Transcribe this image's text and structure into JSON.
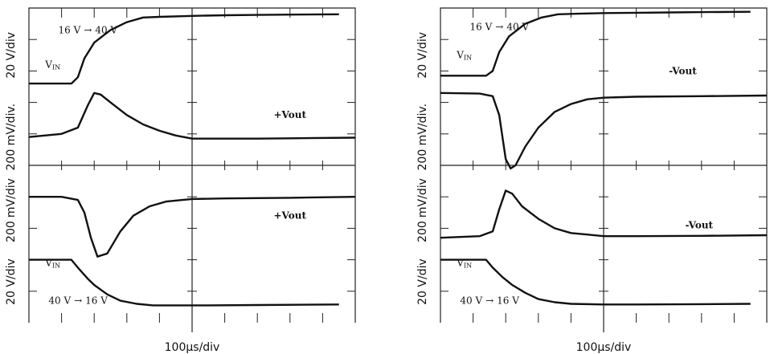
{
  "chart_data": [
    {
      "type": "line",
      "name_hint": "left-oscilloscope",
      "xlabel": "100µs/div",
      "xlim_div": [
        0,
        10
      ],
      "ylim_div": [
        0,
        10
      ],
      "grid": "major-lines-center-and-edges-with-ticks",
      "axis_labels_left": [
        {
          "text": "20 V/div",
          "div_center": 8.5
        },
        {
          "text": "200 mV/div.",
          "div_center": 5.9
        },
        {
          "text": "200",
          "div_center": 3.3
        },
        {
          "text": "mV/div",
          "div_center": 3.3
        },
        {
          "text": "20 V/div",
          "div_center": 1.3
        }
      ],
      "divider_div": 5,
      "series": [
        {
          "id": "vin_rise",
          "x": [
            0,
            1.3,
            1.5,
            1.7,
            2.0,
            2.5,
            3.0,
            3.5,
            4.0,
            5.0,
            6.0,
            7.0,
            8.0,
            9.5
          ],
          "y": [
            7.6,
            7.6,
            7.8,
            8.4,
            8.9,
            9.3,
            9.55,
            9.7,
            9.72,
            9.75,
            9.77,
            9.78,
            9.79,
            9.8
          ]
        },
        {
          "id": "vout_pos_top",
          "x": [
            0,
            1.0,
            1.5,
            1.8,
            2.0,
            2.2,
            2.5,
            3.0,
            3.5,
            4.0,
            4.5,
            5.0,
            6.0,
            7.0,
            8.0,
            10
          ],
          "y": [
            5.9,
            6.0,
            6.2,
            6.9,
            7.3,
            7.25,
            7.0,
            6.6,
            6.3,
            6.1,
            5.95,
            5.85,
            5.85,
            5.85,
            5.86,
            5.88
          ]
        },
        {
          "id": "vout_pos_bottom",
          "x": [
            0,
            1.0,
            1.5,
            1.7,
            1.9,
            2.1,
            2.4,
            2.8,
            3.2,
            3.7,
            4.2,
            5.0,
            6.0,
            8.0,
            10
          ],
          "y": [
            4.0,
            4.0,
            3.9,
            3.5,
            2.7,
            2.1,
            2.2,
            2.9,
            3.4,
            3.7,
            3.85,
            3.93,
            3.95,
            3.97,
            4.0
          ]
        },
        {
          "id": "vin_fall",
          "x": [
            0,
            1.3,
            1.5,
            1.8,
            2.0,
            2.4,
            2.8,
            3.3,
            3.8,
            4.5,
            5.5,
            7.0,
            9.5
          ],
          "y": [
            2.0,
            2.0,
            1.75,
            1.4,
            1.2,
            0.9,
            0.7,
            0.6,
            0.55,
            0.55,
            0.55,
            0.56,
            0.58
          ]
        }
      ],
      "annotations": [
        {
          "text": "16 V",
          "arrow": "→",
          "text2": "40 V",
          "div": [
            0.9,
            9.2
          ]
        },
        {
          "text": "V",
          "sub": "IN",
          "div": [
            0.5,
            8.1
          ]
        },
        {
          "text": "+Vout",
          "div": [
            7.5,
            6.5
          ]
        },
        {
          "text": "+Vout",
          "div": [
            7.5,
            3.3
          ]
        },
        {
          "text": "V",
          "sub": "IN",
          "div": [
            0.5,
            1.8
          ]
        },
        {
          "text": "40 V",
          "arrow": "→",
          "text2": "16 V",
          "div": [
            0.6,
            0.6
          ]
        }
      ]
    },
    {
      "type": "line",
      "name_hint": "right-oscilloscope",
      "xlabel": "100µs/div",
      "xlim_div": [
        0,
        10
      ],
      "ylim_div": [
        0,
        10
      ],
      "grid": "major-lines-center-and-edges-with-ticks",
      "axis_labels_left": [
        {
          "text": "20 V/div",
          "div_center": 8.5
        },
        {
          "text": "200 mV/div.",
          "div_center": 5.9
        },
        {
          "text": "200",
          "div_center": 3.3
        },
        {
          "text": "mV/div",
          "div_center": 3.3
        },
        {
          "text": "20 V/div",
          "div_center": 1.3
        }
      ],
      "divider_div": 5,
      "series": [
        {
          "id": "vin_rise",
          "x": [
            0,
            1.4,
            1.6,
            1.8,
            2.1,
            2.6,
            3.1,
            3.6,
            4.2,
            5.0,
            6.0,
            7.0,
            8.0,
            9.5
          ],
          "y": [
            7.85,
            7.85,
            8.0,
            8.6,
            9.1,
            9.5,
            9.7,
            9.8,
            9.82,
            9.84,
            9.85,
            9.86,
            9.87,
            9.88
          ]
        },
        {
          "id": "vout_neg_top",
          "x": [
            0,
            1.2,
            1.6,
            1.8,
            2.0,
            2.15,
            2.3,
            2.6,
            3.0,
            3.5,
            4.0,
            4.5,
            5.0,
            6.0,
            8.0,
            10
          ],
          "y": [
            7.3,
            7.28,
            7.2,
            6.6,
            5.2,
            4.9,
            5.0,
            5.6,
            6.2,
            6.7,
            6.95,
            7.1,
            7.15,
            7.18,
            7.2,
            7.22
          ]
        },
        {
          "id": "vout_neg_bottom",
          "x": [
            0,
            1.2,
            1.6,
            1.8,
            2.0,
            2.2,
            2.5,
            3.0,
            3.5,
            4.0,
            4.5,
            5.0,
            6.0,
            8.0,
            10
          ],
          "y": [
            2.7,
            2.75,
            2.9,
            3.6,
            4.2,
            4.1,
            3.7,
            3.3,
            3.0,
            2.85,
            2.8,
            2.75,
            2.75,
            2.76,
            2.78
          ]
        },
        {
          "id": "vin_fall",
          "x": [
            0,
            1.4,
            1.6,
            1.9,
            2.2,
            2.6,
            3.0,
            3.5,
            4.0,
            5.0,
            6.0,
            8.0,
            9.5
          ],
          "y": [
            2.0,
            2.0,
            1.75,
            1.45,
            1.2,
            0.95,
            0.75,
            0.65,
            0.6,
            0.58,
            0.58,
            0.59,
            0.6
          ]
        }
      ],
      "annotations": [
        {
          "text": "16 V",
          "arrow": "→",
          "text2": "40 V",
          "div": [
            0.9,
            9.3
          ]
        },
        {
          "text": "V",
          "sub": "IN",
          "div": [
            0.5,
            8.4
          ]
        },
        {
          "text": "-Vout",
          "div": [
            7.0,
            7.9
          ]
        },
        {
          "text": "-Vout",
          "div": [
            7.5,
            3.0
          ]
        },
        {
          "text": "V",
          "sub": "IN",
          "div": [
            0.5,
            1.8
          ]
        },
        {
          "text": "40 V",
          "arrow": "→",
          "text2": "16 V",
          "div": [
            0.6,
            0.6
          ]
        }
      ]
    }
  ]
}
